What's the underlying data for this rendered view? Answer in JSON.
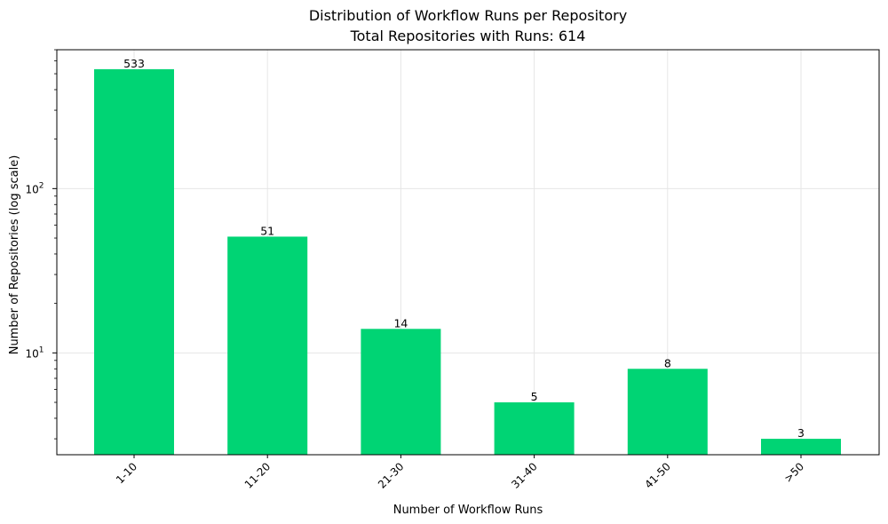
{
  "chart_data": {
    "type": "bar",
    "title": "Distribution of Workflow Runs per Repository",
    "subtitle": "Total Repositories with Runs: 614",
    "xlabel": "Number of Workflow Runs",
    "ylabel": "Number of Repositories (log scale)",
    "yscale": "log",
    "ylim": [
      2.4,
      700
    ],
    "categories": [
      "1-10",
      "11-20",
      "21-30",
      "31-40",
      "41-50",
      ">50"
    ],
    "values": [
      533,
      51,
      14,
      5,
      8,
      3
    ],
    "data_labels": [
      "533",
      "51",
      "14",
      "5",
      "8",
      "3"
    ],
    "y_tick_labels": [
      {
        "base": "10",
        "exp": "1",
        "value": 10
      },
      {
        "base": "10",
        "exp": "2",
        "value": 100
      }
    ],
    "grid": true,
    "bar_color": "#00d474"
  }
}
